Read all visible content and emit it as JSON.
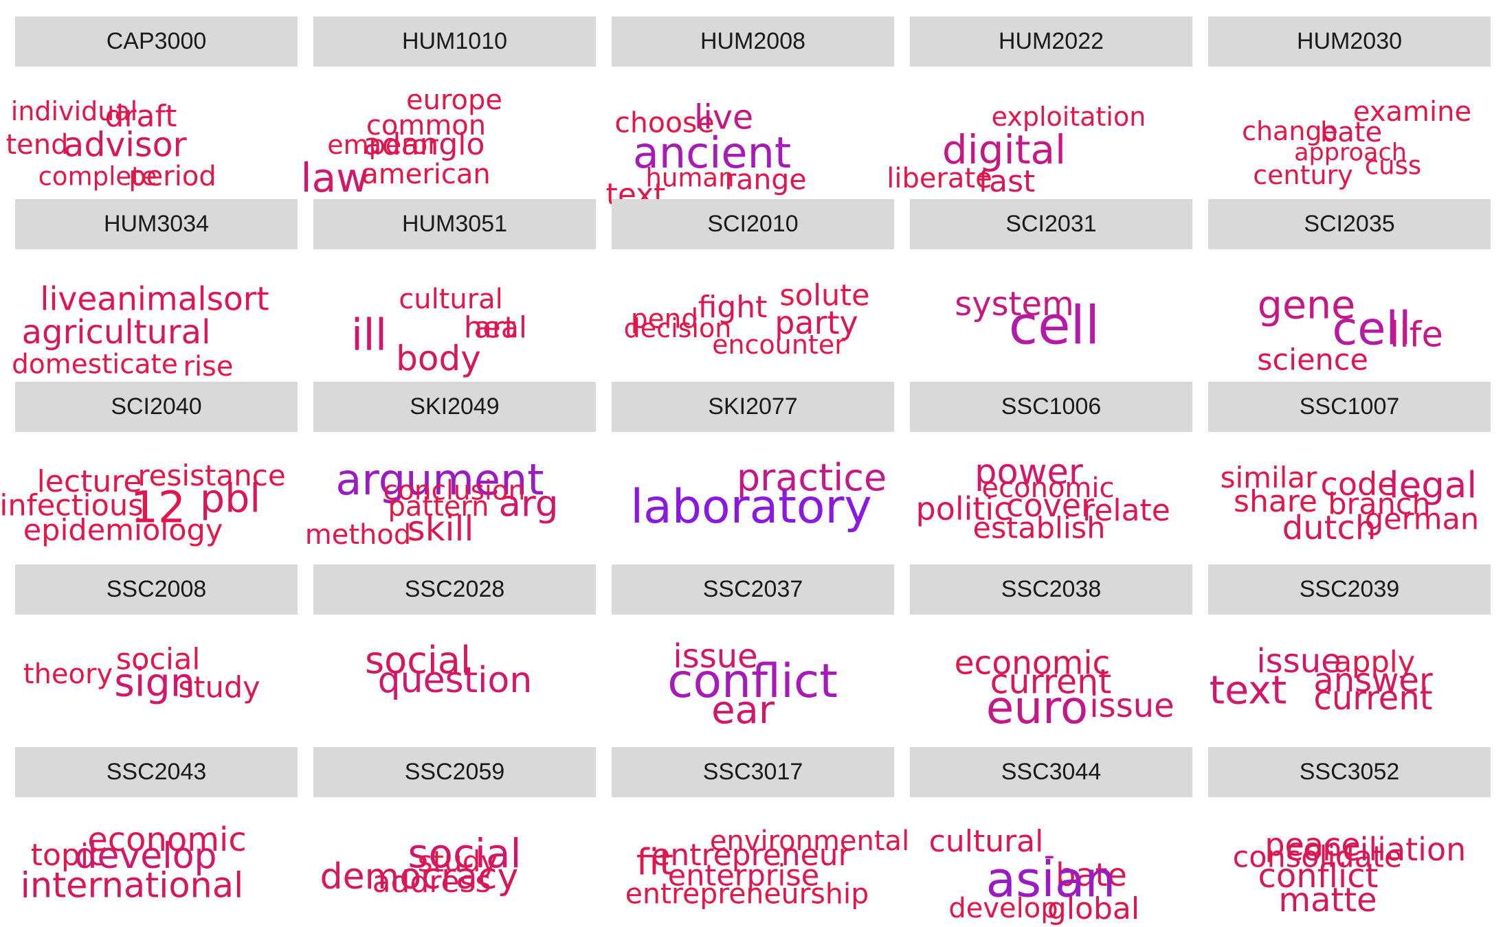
{
  "chart_data": {
    "type": "wordcloud",
    "layout": "facet grid, 5 columns x 5 rows",
    "colors": {
      "strip_bg": "#d9d9d9",
      "low": "#e8163c",
      "high": "#8a18e0"
    },
    "panels": [
      {
        "course": "CAP3000",
        "words": [
          {
            "text": "individual",
            "weight": 0.28,
            "color": "#e61547"
          },
          {
            "text": "draft",
            "weight": 0.4,
            "color": "#e0154d"
          },
          {
            "text": "tend",
            "weight": 0.32,
            "color": "#e61547"
          },
          {
            "text": "advisor",
            "weight": 0.48,
            "color": "#d8165a"
          },
          {
            "text": "complete",
            "weight": 0.27,
            "color": "#e61547"
          },
          {
            "text": "period",
            "weight": 0.33,
            "color": "#e61547"
          }
        ]
      },
      {
        "course": "HUM1010",
        "words": [
          {
            "text": "europe",
            "weight": 0.32,
            "color": "#e61547"
          },
          {
            "text": "common",
            "weight": 0.33,
            "color": "#e61547"
          },
          {
            "text": "emperor",
            "weight": 0.28,
            "color": "#e61547"
          },
          {
            "text": "adanglo",
            "weight": 0.4,
            "color": "#de1551"
          },
          {
            "text": "law",
            "weight": 0.65,
            "color": "#d4166a"
          },
          {
            "text": "american",
            "weight": 0.32,
            "color": "#e61547"
          }
        ]
      },
      {
        "course": "HUM2008",
        "words": [
          {
            "text": "choose",
            "weight": 0.34,
            "color": "#e61547"
          },
          {
            "text": "live",
            "weight": 0.48,
            "color": "#c31788"
          },
          {
            "text": "ancient",
            "weight": 0.72,
            "color": "#a71ab8"
          },
          {
            "text": "text",
            "weight": 0.4,
            "color": "#e61547"
          },
          {
            "text": "human",
            "weight": 0.27,
            "color": "#e61547"
          },
          {
            "text": "range",
            "weight": 0.34,
            "color": "#e01550"
          }
        ]
      },
      {
        "course": "HUM2022",
        "words": [
          {
            "text": "exploitation",
            "weight": 0.28,
            "color": "#e61547"
          },
          {
            "text": "digital",
            "weight": 0.65,
            "color": "#c41885"
          },
          {
            "text": "liberate",
            "weight": 0.32,
            "color": "#e61547"
          },
          {
            "text": "fast",
            "weight": 0.4,
            "color": "#de1553"
          }
        ]
      },
      {
        "course": "HUM2030",
        "words": [
          {
            "text": "examine",
            "weight": 0.32,
            "color": "#e61547"
          },
          {
            "text": "change",
            "weight": 0.28,
            "color": "#e61547"
          },
          {
            "text": "bate",
            "weight": 0.32,
            "color": "#e0154d"
          },
          {
            "text": "approach",
            "weight": 0.24,
            "color": "#e61547"
          },
          {
            "text": "century",
            "weight": 0.28,
            "color": "#e61547"
          },
          {
            "text": "cuss",
            "weight": 0.26,
            "color": "#e61547"
          }
        ]
      },
      {
        "course": "HUM3034",
        "words": [
          {
            "text": "liveanimalsort",
            "weight": 0.45,
            "color": "#e0154d"
          },
          {
            "text": "agricultural",
            "weight": 0.47,
            "color": "#d8165a"
          },
          {
            "text": "domesticate",
            "weight": 0.3,
            "color": "#e61547"
          },
          {
            "text": "rise",
            "weight": 0.33,
            "color": "#e61547"
          }
        ]
      },
      {
        "course": "HUM3051",
        "words": [
          {
            "text": "cultural",
            "weight": 0.33,
            "color": "#e61547"
          },
          {
            "text": "art",
            "weight": 0.37,
            "color": "#e0154d"
          },
          {
            "text": "heal",
            "weight": 0.37,
            "color": "#e01550"
          },
          {
            "text": "ill",
            "weight": 0.74,
            "color": "#d4166a"
          },
          {
            "text": "body",
            "weight": 0.5,
            "color": "#d8165a"
          }
        ]
      },
      {
        "course": "SCI2010",
        "words": [
          {
            "text": "solute",
            "weight": 0.37,
            "color": "#e61547"
          },
          {
            "text": "fight",
            "weight": 0.4,
            "color": "#e0154d"
          },
          {
            "text": "pend",
            "weight": 0.3,
            "color": "#e61547"
          },
          {
            "text": "decision",
            "weight": 0.28,
            "color": "#e61547"
          },
          {
            "text": "party",
            "weight": 0.42,
            "color": "#de1551"
          },
          {
            "text": "encounter",
            "weight": 0.28,
            "color": "#e61547"
          }
        ]
      },
      {
        "course": "SCI2031",
        "words": [
          {
            "text": "system",
            "weight": 0.46,
            "color": "#c91780"
          },
          {
            "text": "cell",
            "weight": 0.98,
            "color": "#b41aa8"
          }
        ]
      },
      {
        "course": "SCI2035",
        "words": [
          {
            "text": "gene",
            "weight": 0.63,
            "color": "#c61785"
          },
          {
            "text": "cell",
            "weight": 0.8,
            "color": "#b61aa2"
          },
          {
            "text": "life",
            "weight": 0.52,
            "color": "#c81782"
          },
          {
            "text": "science",
            "weight": 0.37,
            "color": "#e0154d"
          }
        ]
      },
      {
        "course": "SCI2040",
        "words": [
          {
            "text": "resistance",
            "weight": 0.35,
            "color": "#e61547"
          },
          {
            "text": "lecture",
            "weight": 0.4,
            "color": "#e61547"
          },
          {
            "text": "infectious",
            "weight": 0.37,
            "color": "#e61547"
          },
          {
            "text": "12",
            "weight": 0.74,
            "color": "#e0154d"
          },
          {
            "text": "pbl",
            "weight": 0.62,
            "color": "#d8165a"
          },
          {
            "text": "epidemiology",
            "weight": 0.37,
            "color": "#e61547"
          }
        ]
      },
      {
        "course": "SKI2049",
        "words": [
          {
            "text": "argument",
            "weight": 0.72,
            "color": "#9a1ac4"
          },
          {
            "text": "pattern",
            "weight": 0.32,
            "color": "#e61547"
          },
          {
            "text": "arg",
            "weight": 0.55,
            "color": "#d4166a"
          },
          {
            "text": "method",
            "weight": 0.33,
            "color": "#e61547"
          },
          {
            "text": "skill",
            "weight": 0.5,
            "color": "#e0154d"
          },
          {
            "text": "conclusion",
            "weight": 0.3,
            "color": "#e61547"
          }
        ]
      },
      {
        "course": "SKI2077",
        "words": [
          {
            "text": "practice",
            "weight": 0.58,
            "color": "#c41888"
          },
          {
            "text": "laboratory",
            "weight": 0.82,
            "color": "#8a18e0"
          }
        ]
      },
      {
        "course": "SSC1006",
        "words": [
          {
            "text": "power",
            "weight": 0.52,
            "color": "#d4166a"
          },
          {
            "text": "economic",
            "weight": 0.33,
            "color": "#e0154d"
          },
          {
            "text": "politic",
            "weight": 0.42,
            "color": "#e01550"
          },
          {
            "text": "cover",
            "weight": 0.42,
            "color": "#d8165a"
          },
          {
            "text": "relate",
            "weight": 0.4,
            "color": "#e01550"
          },
          {
            "text": "establish",
            "weight": 0.38,
            "color": "#e0154d"
          }
        ]
      },
      {
        "course": "SSC1007",
        "words": [
          {
            "text": "similar",
            "weight": 0.36,
            "color": "#e61547"
          },
          {
            "text": "code",
            "weight": 0.42,
            "color": "#de1551"
          },
          {
            "text": "legal",
            "weight": 0.55,
            "color": "#d4166a"
          },
          {
            "text": "share",
            "weight": 0.4,
            "color": "#e61547"
          },
          {
            "text": "branch",
            "weight": 0.38,
            "color": "#e0154d"
          },
          {
            "text": "dutch",
            "weight": 0.47,
            "color": "#d8165a"
          },
          {
            "text": "german",
            "weight": 0.38,
            "color": "#e0154d"
          }
        ]
      },
      {
        "course": "SSC2008",
        "words": [
          {
            "text": "social",
            "weight": 0.37,
            "color": "#e61547"
          },
          {
            "text": "theory",
            "weight": 0.33,
            "color": "#e61547"
          },
          {
            "text": "sign",
            "weight": 0.62,
            "color": "#d4166a"
          },
          {
            "text": "study",
            "weight": 0.38,
            "color": "#e0154d"
          }
        ]
      },
      {
        "course": "SSC2028",
        "words": [
          {
            "text": "social",
            "weight": 0.57,
            "color": "#d8165a"
          },
          {
            "text": "question",
            "weight": 0.54,
            "color": "#d4166a"
          }
        ]
      },
      {
        "course": "SSC2037",
        "words": [
          {
            "text": "issue",
            "weight": 0.46,
            "color": "#d4166a"
          },
          {
            "text": "conflict",
            "weight": 0.82,
            "color": "#a71ab8"
          },
          {
            "text": "ear",
            "weight": 0.6,
            "color": "#d4166a"
          }
        ]
      },
      {
        "course": "SSC2038",
        "words": [
          {
            "text": "economic",
            "weight": 0.44,
            "color": "#e0154d"
          },
          {
            "text": "current",
            "weight": 0.48,
            "color": "#d8165a"
          },
          {
            "text": "euro",
            "weight": 0.78,
            "color": "#c41888"
          },
          {
            "text": "issue",
            "weight": 0.46,
            "color": "#d4166a"
          }
        ]
      },
      {
        "course": "SSC2039",
        "words": [
          {
            "text": "issue",
            "weight": 0.46,
            "color": "#d4166a"
          },
          {
            "text": "apply",
            "weight": 0.38,
            "color": "#e61547"
          },
          {
            "text": "answer",
            "weight": 0.46,
            "color": "#d8165a"
          },
          {
            "text": "text",
            "weight": 0.62,
            "color": "#d4166a"
          },
          {
            "text": "current",
            "weight": 0.46,
            "color": "#d8165a"
          }
        ]
      },
      {
        "course": "SSC2043",
        "words": [
          {
            "text": "economic",
            "weight": 0.46,
            "color": "#e0154d"
          },
          {
            "text": "topic",
            "weight": 0.4,
            "color": "#e61547"
          },
          {
            "text": "develop",
            "weight": 0.53,
            "color": "#d4166a"
          },
          {
            "text": "international",
            "weight": 0.52,
            "color": "#d8165a"
          }
        ]
      },
      {
        "course": "SSC2059",
        "words": [
          {
            "text": "social",
            "weight": 0.65,
            "color": "#d4166a"
          },
          {
            "text": "study",
            "weight": 0.35,
            "color": "#e61547"
          },
          {
            "text": "address",
            "weight": 0.4,
            "color": "#e0154d"
          },
          {
            "text": "democracy",
            "weight": 0.53,
            "color": "#d8165a"
          }
        ]
      },
      {
        "course": "SSC3017",
        "words": [
          {
            "text": "environmental",
            "weight": 0.32,
            "color": "#e61547"
          },
          {
            "text": "fit",
            "weight": 0.55,
            "color": "#e0154d"
          },
          {
            "text": "entrepreneur",
            "weight": 0.4,
            "color": "#e0154d"
          },
          {
            "text": "enterprise",
            "weight": 0.38,
            "color": "#e0154d"
          },
          {
            "text": "entrepreneurship",
            "weight": 0.34,
            "color": "#e61547"
          }
        ]
      },
      {
        "course": "SSC3044",
        "words": [
          {
            "text": "cultural",
            "weight": 0.4,
            "color": "#e0154d"
          },
          {
            "text": "-",
            "weight": 0.4,
            "color": "#b41aa8"
          },
          {
            "text": "bate",
            "weight": 0.43,
            "color": "#e0154d"
          },
          {
            "text": "asian",
            "weight": 0.88,
            "color": "#9a1ac4"
          },
          {
            "text": "develop",
            "weight": 0.32,
            "color": "#e61547"
          },
          {
            "text": "global",
            "weight": 0.4,
            "color": "#e0154d"
          }
        ]
      },
      {
        "course": "SSC3052",
        "words": [
          {
            "text": "peace",
            "weight": 0.43,
            "color": "#e0154d"
          },
          {
            "text": "consolidate",
            "weight": 0.38,
            "color": "#e0154d"
          },
          {
            "text": "conciliation",
            "weight": 0.43,
            "color": "#d8165a"
          },
          {
            "text": "conflict",
            "weight": 0.46,
            "color": "#d8165a"
          },
          {
            "text": "matte",
            "weight": 0.46,
            "color": "#d8165a"
          }
        ]
      }
    ]
  }
}
